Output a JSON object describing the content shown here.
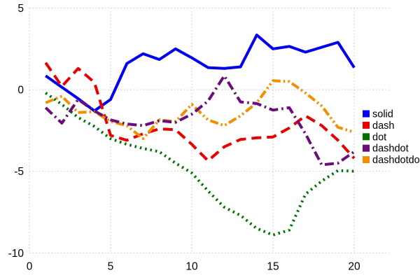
{
  "chart_data": {
    "type": "line",
    "title": "",
    "xlabel": "",
    "ylabel": "",
    "grid": true,
    "legend_position": "right-middle",
    "xlim": [
      0,
      22.2
    ],
    "ylim": [
      -10.5,
      5
    ],
    "x_ticks": [
      0,
      5,
      10,
      15,
      20
    ],
    "x_tick_labels": [
      "0",
      "5",
      "10",
      "15",
      "20"
    ],
    "y_ticks": [
      5,
      0,
      -5,
      -10
    ],
    "y_tick_labels": [
      "5",
      "0",
      "-5",
      "-10"
    ],
    "x": [
      1,
      2,
      3,
      4,
      5,
      6,
      7,
      8,
      9,
      10,
      11,
      12,
      13,
      14,
      15,
      16,
      17,
      18,
      19,
      20
    ],
    "series": [
      {
        "name": "solid",
        "color": "#0000ee",
        "line_style": "solid",
        "values": [
          0.85,
          0.15,
          -0.55,
          -1.3,
          -0.6,
          1.6,
          2.2,
          1.85,
          2.5,
          1.95,
          1.35,
          1.3,
          1.4,
          3.35,
          2.5,
          2.65,
          2.3,
          2.6,
          2.9,
          1.35
        ]
      },
      {
        "name": "dash",
        "color": "#e60000",
        "line_style": "dash",
        "values": [
          1.65,
          0.2,
          1.3,
          0.45,
          -2.8,
          -3.1,
          -2.7,
          -2.4,
          -2.45,
          -3.35,
          -4.35,
          -3.5,
          -3.05,
          -2.95,
          -2.9,
          -2.35,
          -1.6,
          -2.2,
          -3.1,
          -4.2
        ]
      },
      {
        "name": "dot",
        "color": "#007200",
        "line_style": "dot",
        "values": [
          -0.2,
          -0.9,
          -1.7,
          -2.25,
          -3.0,
          -3.35,
          -3.6,
          -3.8,
          -4.5,
          -5.1,
          -6.2,
          -7.2,
          -7.7,
          -8.5,
          -8.9,
          -8.6,
          -6.4,
          -5.6,
          -4.95,
          -5.0
        ]
      },
      {
        "name": "dashdotdot",
        "color": "#f09000",
        "line_style": "dashdotdot",
        "values": [
          -0.8,
          -0.4,
          -1.4,
          -1.35,
          -1.95,
          -2.2,
          -3.0,
          -1.85,
          -1.95,
          -0.9,
          -1.85,
          -2.2,
          -1.6,
          -0.8,
          0.55,
          0.5,
          -0.2,
          -1.0,
          -2.3,
          -2.6
        ]
      },
      {
        "name": "dashdot",
        "color": "#6a0d7a",
        "line_style": "dashdot",
        "values": [
          -1.1,
          -2.05,
          -0.6,
          -1.3,
          -1.85,
          -2.1,
          -2.2,
          -1.9,
          -2.0,
          -1.5,
          -0.7,
          0.85,
          -0.75,
          -0.85,
          -1.25,
          -1.1,
          -2.7,
          -4.6,
          -4.5,
          -3.8
        ]
      }
    ],
    "legend_order": [
      "solid",
      "dash",
      "dot",
      "dashdot",
      "dashdotdot"
    ],
    "colors": {
      "grid": "#c8c8dc",
      "tick_text": "#000000",
      "background": "#ffffff"
    }
  }
}
